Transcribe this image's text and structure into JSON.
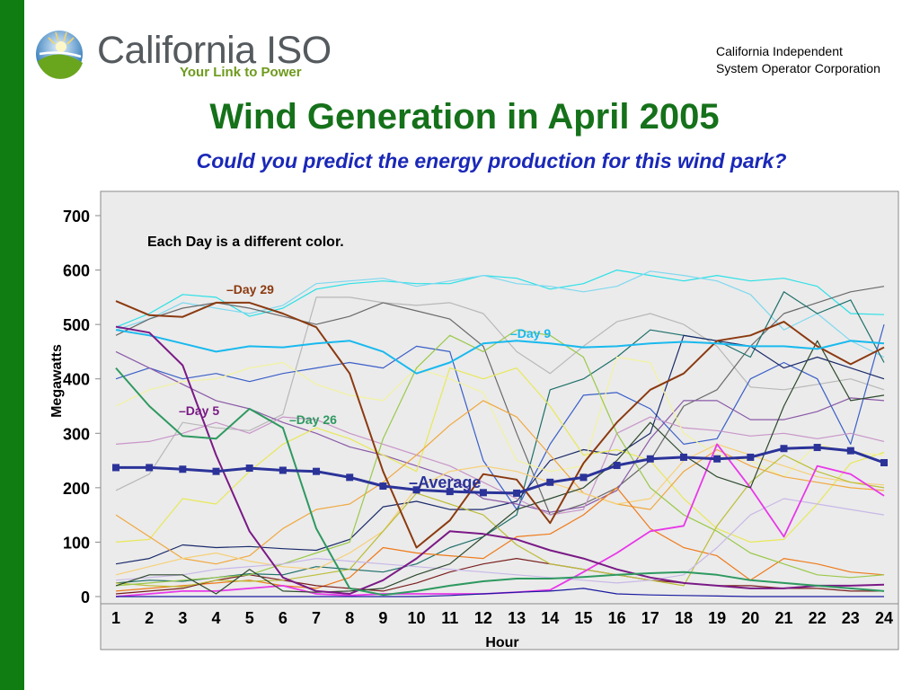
{
  "header": {
    "logo_text": "California ISO",
    "logo_tagline": "Your Link to Power",
    "org_line1": "California Independent",
    "org_line2": "System Operator Corporation"
  },
  "title": "Wind Generation in April 2005",
  "subtitle": "Could you predict the energy production for this wind park?",
  "colors": {
    "side_bar": "#0f7d12",
    "title": "#15711a",
    "subtitle": "#1a28b8",
    "average": "#2b3399"
  },
  "chart_data": {
    "type": "line",
    "xlabel": "Hour",
    "ylabel": "Megawatts",
    "ylim": [
      0,
      700
    ],
    "yticks": [
      0,
      100,
      200,
      300,
      400,
      500,
      600,
      700
    ],
    "x": [
      1,
      2,
      3,
      4,
      5,
      6,
      7,
      8,
      9,
      10,
      11,
      12,
      13,
      14,
      15,
      16,
      17,
      18,
      19,
      20,
      21,
      22,
      23,
      24
    ],
    "xtick_labels": [
      "1",
      "2",
      "3",
      "4",
      "5",
      "6",
      "7",
      "8",
      "9",
      "10",
      "11",
      "12",
      "13",
      "14",
      "15",
      "16",
      "17",
      "18",
      "19",
      "20",
      "21",
      "22",
      "23",
      "24"
    ],
    "grid": false,
    "annotation": "Each Day is a different color.",
    "series": [
      {
        "name": "Average",
        "color": "#2b3399",
        "width": 3,
        "markers": true,
        "values": [
          237,
          237,
          234,
          230,
          236,
          232,
          230,
          219,
          203,
          196,
          193,
          191,
          190,
          210,
          219,
          241,
          253,
          256,
          253,
          256,
          272,
          274,
          268,
          246
        ]
      },
      {
        "name": "Day 29",
        "color": "#8b3a10",
        "width": 2,
        "values": [
          543,
          517,
          514,
          540,
          540,
          520,
          495,
          410,
          230,
          90,
          140,
          225,
          215,
          135,
          245,
          320,
          380,
          410,
          470,
          480,
          505,
          460,
          427,
          458
        ]
      },
      {
        "name": "Day 9",
        "color": "#19b9ee",
        "width": 2,
        "values": [
          490,
          480,
          465,
          450,
          460,
          458,
          465,
          470,
          450,
          410,
          430,
          465,
          470,
          465,
          458,
          460,
          465,
          468,
          465,
          460,
          460,
          455,
          470,
          465
        ]
      },
      {
        "name": "Day 5",
        "color": "#7a1a86",
        "width": 2,
        "values": [
          496,
          485,
          425,
          260,
          120,
          35,
          10,
          5,
          30,
          70,
          120,
          115,
          105,
          85,
          70,
          50,
          35,
          25,
          20,
          15,
          15,
          20,
          20,
          22
        ]
      },
      {
        "name": "Day 26",
        "color": "#2e9960",
        "width": 2,
        "values": [
          420,
          350,
          295,
          290,
          345,
          310,
          125,
          15,
          3,
          10,
          20,
          28,
          33,
          33,
          36,
          40,
          43,
          45,
          40,
          30,
          25,
          20,
          15,
          10
        ]
      },
      {
        "color": "#2be0e6",
        "width": 1.2,
        "values": [
          495,
          520,
          555,
          550,
          515,
          530,
          565,
          575,
          580,
          575,
          575,
          590,
          585,
          565,
          575,
          600,
          590,
          580,
          590,
          580,
          585,
          570,
          520,
          518
        ]
      },
      {
        "color": "#7fd8ef",
        "width": 1.2,
        "values": [
          490,
          510,
          540,
          530,
          520,
          535,
          575,
          580,
          585,
          570,
          580,
          590,
          575,
          570,
          560,
          570,
          598,
          590,
          580,
          555,
          490,
          520,
          470,
          440
        ]
      },
      {
        "color": "#b8b8b8",
        "width": 1.2,
        "values": [
          195,
          225,
          320,
          310,
          305,
          335,
          550,
          550,
          540,
          535,
          540,
          520,
          450,
          410,
          460,
          505,
          520,
          500,
          460,
          385,
          380,
          390,
          400,
          380
        ]
      },
      {
        "color": "#6a6a6a",
        "width": 1.2,
        "values": [
          480,
          510,
          530,
          540,
          530,
          515,
          500,
          515,
          540,
          525,
          510,
          460,
          300,
          150,
          170,
          200,
          250,
          350,
          380,
          460,
          520,
          540,
          560,
          570
        ]
      },
      {
        "color": "#1e6f6a",
        "width": 1.2,
        "values": [
          25,
          30,
          28,
          35,
          42,
          40,
          55,
          50,
          45,
          60,
          90,
          110,
          150,
          380,
          400,
          440,
          490,
          480,
          470,
          440,
          560,
          520,
          545,
          430
        ]
      },
      {
        "color": "#3a5fc8",
        "width": 1.2,
        "values": [
          400,
          420,
          400,
          410,
          395,
          410,
          420,
          430,
          420,
          460,
          450,
          250,
          160,
          280,
          370,
          375,
          345,
          280,
          290,
          400,
          430,
          400,
          280,
          500
        ]
      },
      {
        "color": "#1a2a6a",
        "width": 1.2,
        "values": [
          60,
          70,
          95,
          90,
          92,
          88,
          85,
          105,
          165,
          175,
          160,
          160,
          175,
          250,
          270,
          260,
          300,
          480,
          470,
          460,
          420,
          440,
          420,
          400
        ]
      },
      {
        "color": "#8a5aa8",
        "width": 1.2,
        "values": [
          450,
          420,
          390,
          360,
          345,
          320,
          300,
          275,
          260,
          240,
          220,
          180,
          170,
          155,
          165,
          195,
          290,
          360,
          360,
          325,
          325,
          340,
          365,
          360
        ]
      },
      {
        "color": "#c896c8",
        "width": 1.2,
        "values": [
          280,
          285,
          300,
          320,
          300,
          330,
          325,
          300,
          280,
          260,
          240,
          210,
          180,
          150,
          160,
          300,
          330,
          310,
          305,
          295,
          300,
          290,
          300,
          285
        ]
      },
      {
        "color": "#e8e85a",
        "width": 1.2,
        "values": [
          100,
          105,
          180,
          170,
          230,
          280,
          310,
          290,
          260,
          230,
          420,
          400,
          420,
          350,
          260,
          270,
          250,
          180,
          125,
          100,
          105,
          170,
          245,
          265
        ]
      },
      {
        "color": "#f2f2a0",
        "width": 1.2,
        "values": [
          350,
          380,
          395,
          400,
          420,
          430,
          390,
          370,
          360,
          420,
          400,
          375,
          250,
          230,
          240,
          440,
          430,
          300,
          260,
          250,
          220,
          280,
          265,
          260
        ]
      },
      {
        "color": "#f0a840",
        "width": 1.2,
        "values": [
          150,
          110,
          70,
          60,
          75,
          125,
          160,
          170,
          210,
          260,
          315,
          360,
          330,
          260,
          190,
          170,
          160,
          230,
          270,
          240,
          220,
          210,
          200,
          195
        ]
      },
      {
        "color": "#f6d078",
        "width": 1.2,
        "values": [
          40,
          55,
          70,
          80,
          65,
          55,
          50,
          80,
          120,
          200,
          230,
          240,
          230,
          210,
          190,
          170,
          180,
          250,
          280,
          260,
          240,
          220,
          210,
          205
        ]
      },
      {
        "color": "#ef7a1a",
        "width": 1.2,
        "values": [
          10,
          15,
          20,
          25,
          30,
          20,
          15,
          35,
          90,
          80,
          75,
          70,
          110,
          115,
          150,
          200,
          125,
          90,
          75,
          30,
          70,
          60,
          45,
          40
        ]
      },
      {
        "color": "#7a1e1e",
        "width": 1.2,
        "values": [
          5,
          10,
          15,
          30,
          40,
          30,
          20,
          15,
          10,
          25,
          45,
          60,
          70,
          60,
          50,
          40,
          30,
          25,
          20,
          20,
          15,
          15,
          10,
          10
        ]
      },
      {
        "color": "#bcbe3a",
        "width": 1.2,
        "values": [
          25,
          20,
          18,
          30,
          28,
          30,
          40,
          50,
          120,
          190,
          170,
          150,
          95,
          60,
          50,
          40,
          30,
          20,
          130,
          210,
          260,
          230,
          210,
          200
        ]
      },
      {
        "color": "#9ac94a",
        "width": 1.2,
        "values": [
          20,
          25,
          30,
          35,
          40,
          60,
          80,
          100,
          290,
          420,
          480,
          450,
          490,
          480,
          440,
          300,
          200,
          150,
          120,
          80,
          60,
          40,
          35,
          40
        ]
      },
      {
        "color": "#c8b8e8",
        "width": 1.2,
        "values": [
          30,
          35,
          40,
          50,
          55,
          60,
          70,
          65,
          60,
          55,
          50,
          45,
          40,
          35,
          30,
          25,
          30,
          40,
          90,
          150,
          180,
          170,
          160,
          150
        ]
      },
      {
        "color": "#e838e8",
        "width": 1.8,
        "values": [
          0,
          5,
          10,
          10,
          15,
          20,
          5,
          2,
          5,
          5,
          5,
          5,
          8,
          12,
          45,
          80,
          120,
          130,
          280,
          200,
          110,
          240,
          225,
          185
        ]
      },
      {
        "color": "#1a1aa0",
        "width": 1.2,
        "values": [
          0,
          0,
          0,
          0,
          0,
          0,
          0,
          0,
          0,
          0,
          2,
          5,
          8,
          10,
          15,
          5,
          3,
          2,
          1,
          0,
          0,
          0,
          0,
          0
        ]
      },
      {
        "color": "#2e4a2e",
        "width": 1.2,
        "values": [
          20,
          40,
          40,
          5,
          50,
          10,
          8,
          10,
          15,
          40,
          60,
          110,
          160,
          180,
          200,
          250,
          320,
          260,
          220,
          200,
          350,
          470,
          360,
          370
        ]
      }
    ]
  }
}
